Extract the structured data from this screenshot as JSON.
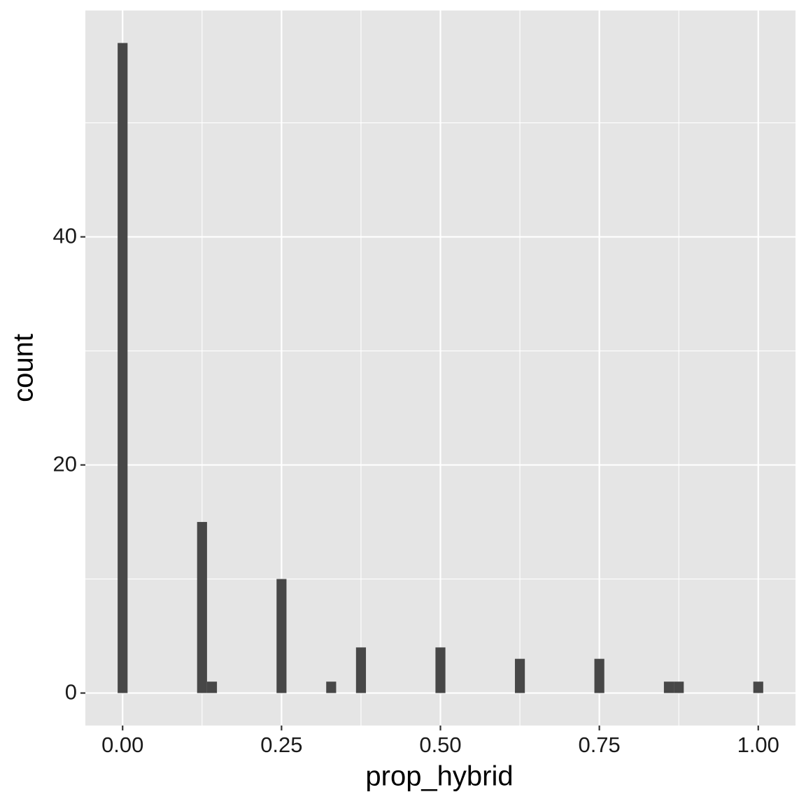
{
  "chart_data": {
    "type": "histogram",
    "x_label": "prop_hybrid",
    "y_label": "count",
    "bins": [
      -0.0078125,
      0.0078125,
      0.0234375,
      0.0390625,
      0.0546875,
      0.0703125,
      0.0859375,
      0.1015625,
      0.1171875,
      0.1328125,
      0.1484375,
      0.1640625,
      0.1796875,
      0.1953125,
      0.2109375,
      0.2265625,
      0.2421875,
      0.2578125,
      0.2734375,
      0.2890625,
      0.3046875,
      0.3203125,
      0.3359375,
      0.3515625,
      0.3671875,
      0.3828125,
      0.3984375,
      0.4140625,
      0.4296875,
      0.4453125,
      0.4609375,
      0.4765625,
      0.4921875,
      0.5078125,
      0.5234375,
      0.5390625,
      0.5546875,
      0.5703125,
      0.5859375,
      0.6015625,
      0.6171875,
      0.6328125,
      0.6484375,
      0.6640625,
      0.6796875,
      0.6953125,
      0.7109375,
      0.7265625,
      0.7421875,
      0.7578125,
      0.7734375,
      0.7890625,
      0.8046875,
      0.8203125,
      0.8359375,
      0.8515625,
      0.8671875,
      0.8828125,
      0.8984375,
      0.9140625,
      0.9296875,
      0.9453125,
      0.9609375,
      0.9765625,
      0.9921875,
      1.0078125
    ],
    "values": [
      57,
      0,
      0,
      0,
      0,
      0,
      0,
      0,
      15,
      1,
      0,
      0,
      0,
      0,
      0,
      0,
      10,
      0,
      0,
      0,
      0,
      1,
      0,
      0,
      4,
      0,
      0,
      0,
      0,
      0,
      0,
      0,
      4,
      0,
      0,
      0,
      0,
      0,
      0,
      0,
      3,
      0,
      0,
      0,
      0,
      0,
      0,
      0,
      3,
      0,
      0,
      0,
      0,
      0,
      0,
      1,
      1,
      0,
      0,
      0,
      0,
      0,
      0,
      0,
      1
    ],
    "color": "#474747",
    "xlim": [
      -0.0586,
      1.0586
    ],
    "xticks": [
      {
        "value": 0,
        "label": "0.00"
      },
      {
        "value": 0.25,
        "label": "0.25"
      },
      {
        "value": 0.5,
        "label": "0.50"
      },
      {
        "value": 0.75,
        "label": "0.75"
      },
      {
        "value": 1,
        "label": "1.00"
      }
    ],
    "ylim": [
      -2.85,
      59.85
    ],
    "yticks": [
      0,
      20,
      40
    ],
    "grid": true
  }
}
